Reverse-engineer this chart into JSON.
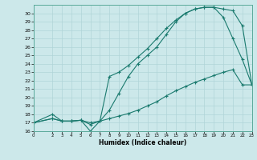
{
  "xlabel": "Humidex (Indice chaleur)",
  "bg_color": "#cce8ea",
  "grid_color": "#b0d4d8",
  "line_color": "#1a7a6e",
  "xlim": [
    0,
    23
  ],
  "ylim": [
    16,
    31
  ],
  "xticks": [
    0,
    2,
    3,
    4,
    5,
    6,
    7,
    8,
    9,
    10,
    11,
    12,
    13,
    14,
    15,
    16,
    17,
    18,
    19,
    20,
    21,
    22,
    23
  ],
  "yticks": [
    16,
    17,
    18,
    19,
    20,
    21,
    22,
    23,
    24,
    25,
    26,
    27,
    28,
    29,
    30
  ],
  "line1_x": [
    0,
    2,
    3,
    4,
    5,
    6,
    7,
    8,
    9,
    10,
    11,
    12,
    13,
    14,
    15,
    16,
    17,
    18,
    19,
    20,
    21,
    22,
    23
  ],
  "line1_y": [
    17,
    17.5,
    17.2,
    17.2,
    17.3,
    16.0,
    17.2,
    18.5,
    20.5,
    22.5,
    24.0,
    25.0,
    26.0,
    27.5,
    29.0,
    30.0,
    30.5,
    30.7,
    30.7,
    30.5,
    30.3,
    28.5,
    21.5
  ],
  "line2_x": [
    0,
    2,
    3,
    4,
    5,
    6,
    7,
    8,
    9,
    10,
    11,
    12,
    13,
    14,
    15,
    16,
    17,
    18,
    19,
    20,
    21,
    22,
    23
  ],
  "line2_y": [
    17,
    17.5,
    17.2,
    17.2,
    17.3,
    16.8,
    17.2,
    22.5,
    23.0,
    23.8,
    24.8,
    25.8,
    27.0,
    28.2,
    29.2,
    30.0,
    30.5,
    30.7,
    30.7,
    29.5,
    27.0,
    24.5,
    21.5
  ],
  "line3_x": [
    0,
    2,
    3,
    4,
    5,
    6,
    7,
    8,
    9,
    10,
    11,
    12,
    13,
    14,
    15,
    16,
    17,
    18,
    19,
    20,
    21,
    22,
    23
  ],
  "line3_y": [
    17,
    18.0,
    17.2,
    17.2,
    17.3,
    17.0,
    17.2,
    17.5,
    17.8,
    18.1,
    18.5,
    19.0,
    19.5,
    20.2,
    20.8,
    21.3,
    21.8,
    22.2,
    22.6,
    23.0,
    23.3,
    21.5,
    21.5
  ]
}
